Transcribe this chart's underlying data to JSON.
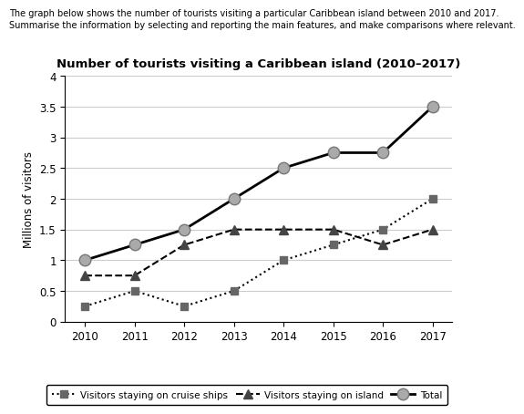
{
  "years": [
    2010,
    2011,
    2012,
    2013,
    2014,
    2015,
    2016,
    2017
  ],
  "cruise_ships": [
    0.25,
    0.5,
    0.25,
    0.5,
    1.0,
    1.25,
    1.5,
    2.0
  ],
  "island": [
    0.75,
    0.75,
    1.25,
    1.5,
    1.5,
    1.5,
    1.25,
    1.5
  ],
  "total": [
    1.0,
    1.25,
    1.5,
    2.0,
    2.5,
    2.75,
    2.75,
    3.5
  ],
  "title": "Number of tourists visiting a Caribbean island (2010–2017)",
  "ylabel": "Millions of visitors",
  "ylim": [
    0,
    4
  ],
  "yticks": [
    0,
    0.5,
    1.0,
    1.5,
    2.0,
    2.5,
    3.0,
    3.5,
    4.0
  ],
  "header_line1": "The graph below shows the number of tourists visiting a particular Caribbean island between 2010 and 2017.",
  "header_line2": "Summarise the information by selecting and reporting the main features, and make comparisons where relevant.",
  "legend_cruise": "Visitors staying on cruise ships",
  "legend_island": "Visitors staying on island",
  "legend_total": "Total",
  "cruise_marker_color": "#666666",
  "island_marker_color": "#444444",
  "total_marker_color": "#aaaaaa",
  "total_marker_edge": "#777777"
}
